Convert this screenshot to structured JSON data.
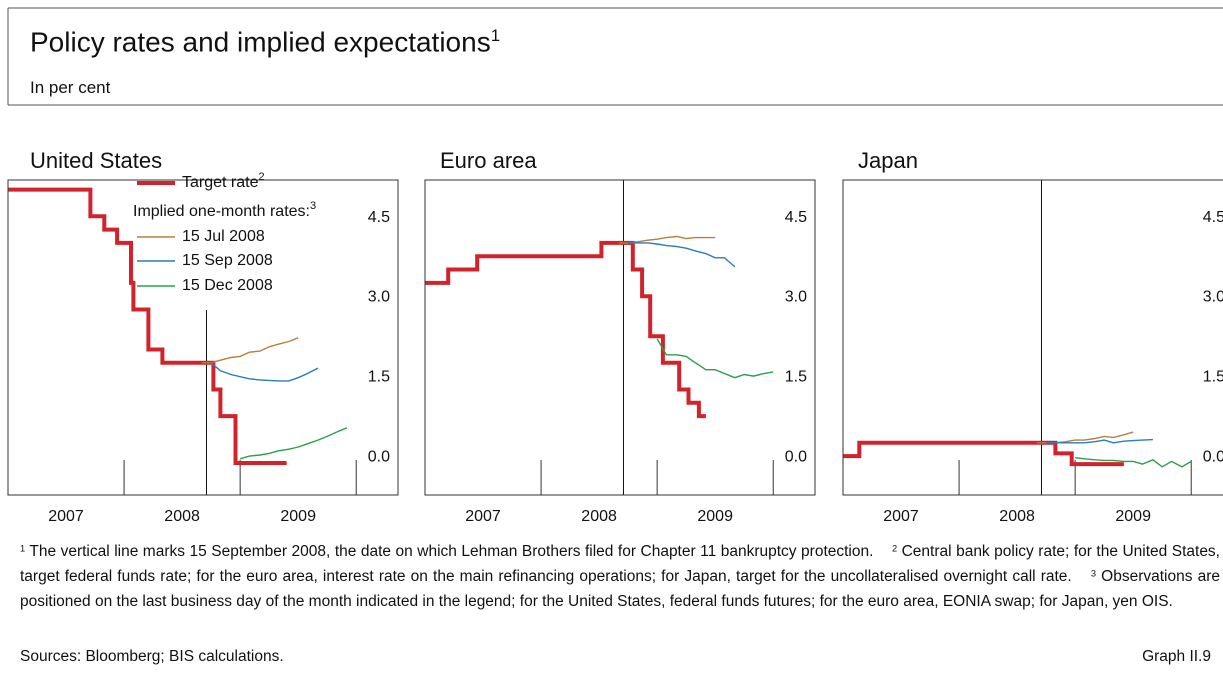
{
  "title": "Policy rates and implied expectations",
  "title_note": "1",
  "subtitle": "In per cent",
  "chart_data": [
    {
      "type": "line",
      "title": "United States",
      "xlim": [
        2007.0,
        2010.36
      ],
      "ylim": [
        -0.48,
        5.43
      ],
      "xticks": [
        {
          "value": 2007.5,
          "label": "2007"
        },
        {
          "value": 2008.5,
          "label": "2008"
        },
        {
          "value": 2009.5,
          "label": "2009"
        }
      ],
      "xmajor_ticks": [
        2008,
        2009,
        2010
      ],
      "yticks": [
        {
          "value": 0,
          "label": "0.0"
        },
        1.5,
        {
          "value": 3,
          "label": "3.0"
        },
        4.5
      ],
      "vline_x": 2008.71,
      "legend": true,
      "legend_title": "Implied one-month rates:",
      "legend_title_sup": "3",
      "series": [
        {
          "name": "Target rate",
          "name_sup": "2",
          "color": "#d0232b",
          "width": 4,
          "x": [
            2007.0,
            2007.71,
            2007.71,
            2007.83,
            2007.83,
            2007.94,
            2007.94,
            2008.06,
            2008.06,
            2008.08,
            2008.08,
            2008.21,
            2008.21,
            2008.33,
            2008.33,
            2008.77,
            2008.77,
            2008.83,
            2008.83,
            2008.96,
            2008.96,
            2009.4
          ],
          "values": [
            5.25,
            5.25,
            4.75,
            4.75,
            4.5,
            4.5,
            4.25,
            4.25,
            3.5,
            3.5,
            3.0,
            3.0,
            2.25,
            2.25,
            2.0,
            2.0,
            1.5,
            1.5,
            1.0,
            1.0,
            0.12,
            0.12
          ]
        },
        {
          "name": "15 Jul 2008",
          "color": "#b5803a",
          "width": 1.4,
          "x": [
            2008.67,
            2008.75,
            2008.83,
            2008.92,
            2009.0,
            2009.08,
            2009.17,
            2009.25,
            2009.33,
            2009.42,
            2009.5
          ],
          "values": [
            2.0,
            2.0,
            2.05,
            2.1,
            2.12,
            2.2,
            2.22,
            2.3,
            2.35,
            2.4,
            2.47
          ]
        },
        {
          "name": "15 Sep 2008",
          "color": "#2a7cc0",
          "width": 1.4,
          "x": [
            2008.75,
            2008.83,
            2008.92,
            2009.0,
            2009.08,
            2009.17,
            2009.25,
            2009.33,
            2009.42,
            2009.5,
            2009.58,
            2009.67
          ],
          "values": [
            2.0,
            1.85,
            1.78,
            1.74,
            1.7,
            1.68,
            1.67,
            1.66,
            1.66,
            1.72,
            1.8,
            1.9
          ]
        },
        {
          "name": "15 Dec 2008",
          "color": "#2aa04a",
          "width": 1.4,
          "x": [
            2009.0,
            2009.08,
            2009.17,
            2009.25,
            2009.33,
            2009.42,
            2009.5,
            2009.58,
            2009.67,
            2009.75,
            2009.83,
            2009.92
          ],
          "values": [
            0.2,
            0.25,
            0.27,
            0.3,
            0.35,
            0.38,
            0.42,
            0.48,
            0.55,
            0.62,
            0.7,
            0.78
          ]
        }
      ]
    },
    {
      "type": "line",
      "title": "Euro area",
      "xlim": [
        2007.0,
        2010.36
      ],
      "ylim": [
        -0.48,
        5.43
      ],
      "xticks": [
        {
          "value": 2007.5,
          "label": "2007"
        },
        {
          "value": 2008.5,
          "label": "2008"
        },
        {
          "value": 2009.5,
          "label": "2009"
        }
      ],
      "xmajor_ticks": [
        2008,
        2009,
        2010
      ],
      "yticks": [
        {
          "value": 0,
          "label": "0.0"
        },
        1.5,
        {
          "value": 3,
          "label": "3.0"
        },
        4.5
      ],
      "vline_x": 2008.71,
      "legend": false,
      "series": [
        {
          "color": "#d0232b",
          "width": 4,
          "x": [
            2007.0,
            2007.2,
            2007.2,
            2007.45,
            2007.45,
            2008.52,
            2008.52,
            2008.79,
            2008.79,
            2008.87,
            2008.87,
            2008.94,
            2008.94,
            2009.05,
            2009.05,
            2009.19,
            2009.19,
            2009.27,
            2009.27,
            2009.36,
            2009.36,
            2009.42
          ],
          "values": [
            3.5,
            3.5,
            3.75,
            3.75,
            4.0,
            4.0,
            4.25,
            4.25,
            3.75,
            3.75,
            3.25,
            3.25,
            2.5,
            2.5,
            2.0,
            2.0,
            1.5,
            1.5,
            1.25,
            1.25,
            1.0,
            1.0
          ]
        },
        {
          "color": "#b5803a",
          "width": 1.4,
          "x": [
            2008.67,
            2008.75,
            2008.83,
            2008.92,
            2009.0,
            2009.08,
            2009.17,
            2009.25,
            2009.33,
            2009.42,
            2009.5
          ],
          "values": [
            4.25,
            4.25,
            4.27,
            4.3,
            4.32,
            4.35,
            4.37,
            4.33,
            4.35,
            4.35,
            4.35
          ]
        },
        {
          "color": "#2a7cc0",
          "width": 1.4,
          "x": [
            2008.75,
            2008.83,
            2008.92,
            2009.0,
            2009.08,
            2009.17,
            2009.25,
            2009.33,
            2009.42,
            2009.5,
            2009.58,
            2009.67
          ],
          "values": [
            4.25,
            4.25,
            4.25,
            4.23,
            4.2,
            4.18,
            4.15,
            4.1,
            4.05,
            3.97,
            3.97,
            3.8
          ]
        },
        {
          "color": "#2aa04a",
          "width": 1.4,
          "x": [
            2009.0,
            2009.08,
            2009.17,
            2009.25,
            2009.33,
            2009.42,
            2009.5,
            2009.58,
            2009.67,
            2009.75,
            2009.83,
            2009.92,
            2010.0
          ],
          "values": [
            2.45,
            2.15,
            2.15,
            2.12,
            2.0,
            1.87,
            1.87,
            1.8,
            1.72,
            1.78,
            1.75,
            1.8,
            1.83
          ]
        }
      ]
    },
    {
      "type": "line",
      "title": "Japan",
      "xlim": [
        2007.0,
        2010.36
      ],
      "ylim": [
        -0.48,
        5.43
      ],
      "xticks": [
        {
          "value": 2007.5,
          "label": "2007"
        },
        {
          "value": 2008.5,
          "label": "2008"
        },
        {
          "value": 2009.5,
          "label": "2009"
        }
      ],
      "xmajor_ticks": [
        2008,
        2009,
        2010
      ],
      "yticks": [
        {
          "value": 0,
          "label": "0.0"
        },
        1.5,
        {
          "value": 3,
          "label": "3.0"
        },
        4.5
      ],
      "vline_x": 2008.71,
      "legend": false,
      "series": [
        {
          "color": "#d0232b",
          "width": 4,
          "x": [
            2007.0,
            2007.14,
            2007.14,
            2008.83,
            2008.83,
            2008.97,
            2008.97,
            2009.42
          ],
          "values": [
            0.25,
            0.25,
            0.5,
            0.5,
            0.3,
            0.3,
            0.1,
            0.1
          ]
        },
        {
          "color": "#b5803a",
          "width": 1.4,
          "x": [
            2008.67,
            2008.75,
            2008.83,
            2008.92,
            2009.0,
            2009.08,
            2009.17,
            2009.25,
            2009.33,
            2009.42,
            2009.5
          ],
          "values": [
            0.5,
            0.5,
            0.5,
            0.52,
            0.55,
            0.55,
            0.58,
            0.62,
            0.6,
            0.65,
            0.7
          ]
        },
        {
          "color": "#2a7cc0",
          "width": 1.4,
          "x": [
            2008.75,
            2008.83,
            2008.92,
            2009.0,
            2009.08,
            2009.17,
            2009.25,
            2009.33,
            2009.42,
            2009.5,
            2009.58,
            2009.67
          ],
          "values": [
            0.5,
            0.5,
            0.5,
            0.5,
            0.5,
            0.52,
            0.55,
            0.5,
            0.53,
            0.54,
            0.55,
            0.56
          ]
        },
        {
          "color": "#2aa04a",
          "width": 1.4,
          "x": [
            2009.0,
            2009.08,
            2009.17,
            2009.25,
            2009.33,
            2009.42,
            2009.5,
            2009.58,
            2009.67,
            2009.75,
            2009.83,
            2009.92,
            2010.0
          ],
          "values": [
            0.22,
            0.2,
            0.18,
            0.17,
            0.17,
            0.15,
            0.15,
            0.1,
            0.18,
            0.05,
            0.15,
            0.05,
            0.15
          ]
        }
      ]
    }
  ],
  "footnotes": [
    {
      "mark": "1",
      "text": "The vertical line marks 15 September 2008, the date on which Lehman Brothers filed for Chapter 11 bankruptcy protection."
    },
    {
      "mark": "2",
      "text": "Central bank policy rate; for the United States, target federal funds rate; for the euro area, interest rate on the main refinancing operations; for Japan, target for the uncollateralised overnight call rate."
    },
    {
      "mark": "3",
      "text": "Observations are positioned on the last business day of the month indicated in the legend; for the United States, federal funds futures; for the euro area, EONIA swap; for Japan, yen OIS."
    }
  ],
  "sources": "Sources: Bloomberg; BIS calculations.",
  "graph_label": "Graph II.9"
}
